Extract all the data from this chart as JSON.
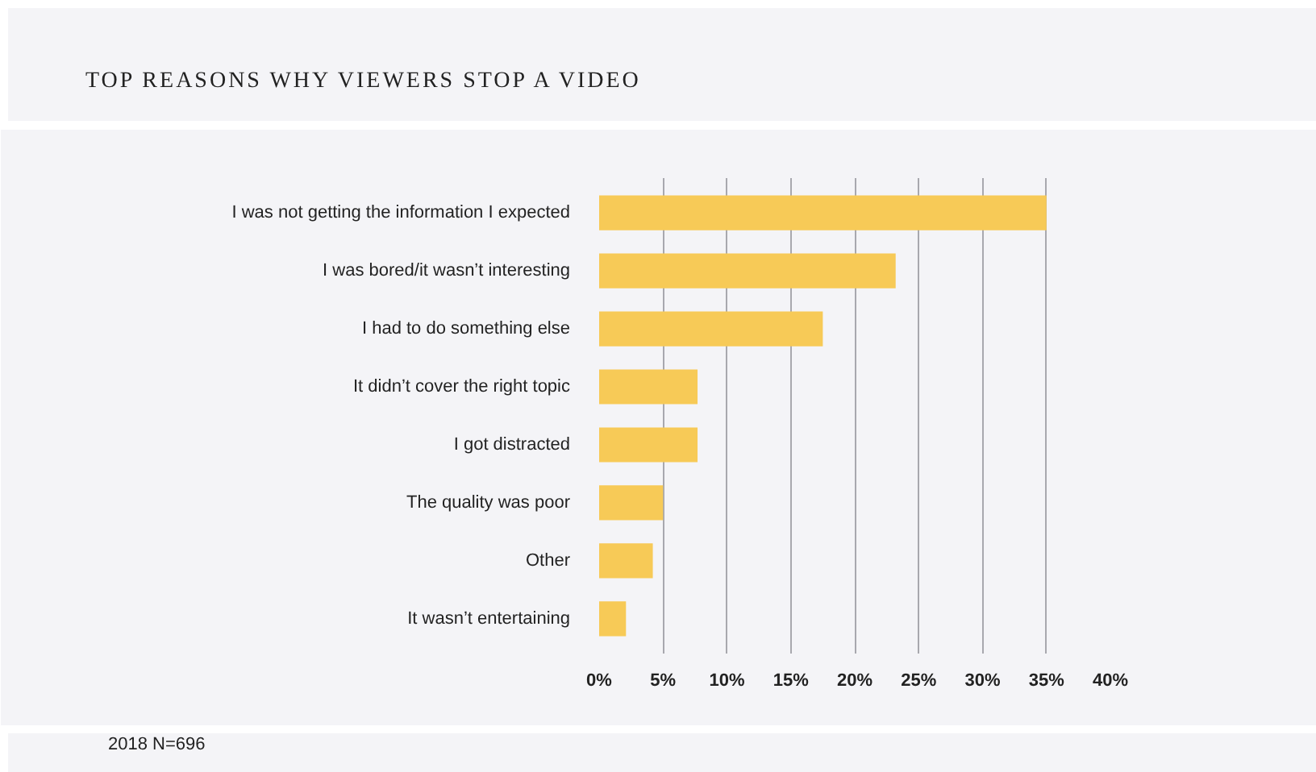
{
  "chart_data": {
    "type": "bar",
    "orientation": "horizontal",
    "title": "TOP REASONS WHY VIEWERS STOP A VIDEO",
    "categories": [
      "I was not getting the information I expected",
      "I was bored/it wasn’t interesting",
      "I had to do something else",
      "It didn’t cover the right topic",
      "I got distracted",
      "The quality was poor",
      "Other",
      "It wasn’t entertaining"
    ],
    "values": [
      35,
      23.2,
      17.5,
      7.7,
      7.7,
      5,
      4.2,
      2.1
    ],
    "color": "#f7ca57",
    "xlim": [
      0,
      40
    ],
    "xticks": [
      {
        "value": 0,
        "label": "0%"
      },
      {
        "value": 5,
        "label": "5%"
      },
      {
        "value": 10,
        "label": "10%"
      },
      {
        "value": 15,
        "label": "15%"
      },
      {
        "value": 20,
        "label": "20%"
      },
      {
        "value": 25,
        "label": "25%"
      },
      {
        "value": 30,
        "label": "30%"
      },
      {
        "value": 35,
        "label": "35%"
      },
      {
        "value": 40,
        "label": "40%"
      }
    ],
    "grid": "x",
    "annotations": [
      "2018 N=696"
    ]
  }
}
